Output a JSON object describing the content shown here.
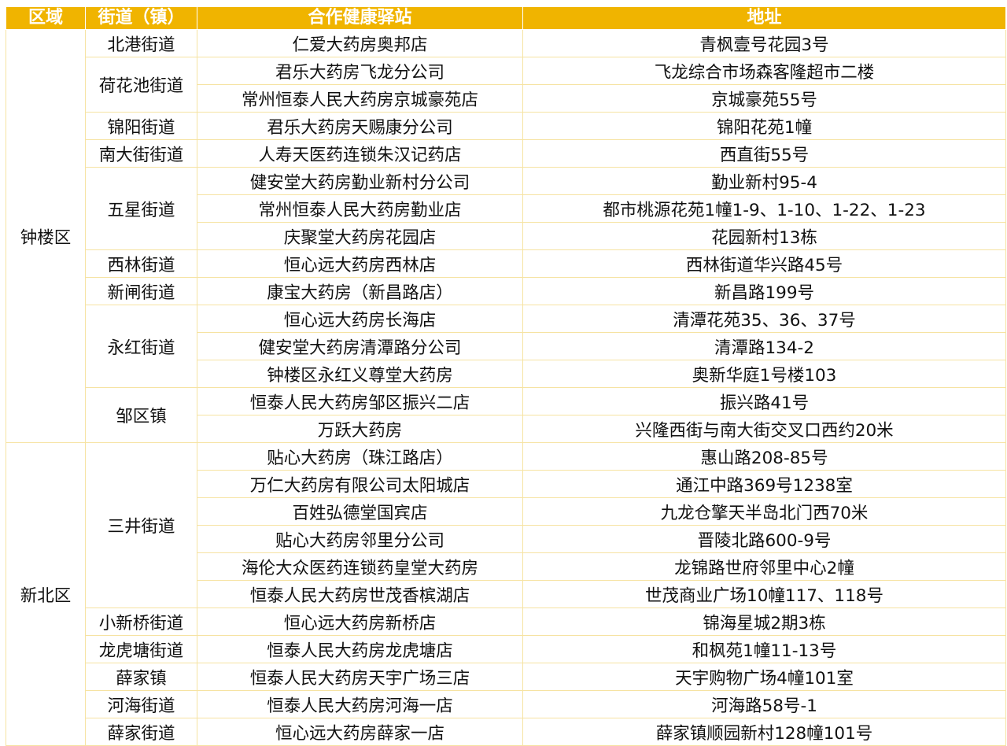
{
  "header": {
    "district": "区域",
    "street": "街道（镇）",
    "station": "合作健康驿站",
    "address": "地址"
  },
  "colors": {
    "header_bg": "#F0B400",
    "header_text": "#FFFFFF",
    "border": "#F6E3A2"
  },
  "districts": [
    {
      "name": "钟楼区",
      "streets": [
        {
          "name": "北港街道",
          "stations": [
            {
              "name": "仁爱大药房奥邦店",
              "address": "青枫壹号花园3号"
            }
          ]
        },
        {
          "name": "荷花池街道",
          "stations": [
            {
              "name": "君乐大药房飞龙分公司",
              "address": "飞龙综合市场森客隆超市二楼"
            },
            {
              "name": "常州恒泰人民大药房京城豪苑店",
              "address": "京城豪苑55号"
            }
          ]
        },
        {
          "name": "锦阳街道",
          "stations": [
            {
              "name": "君乐大药房天赐康分公司",
              "address": "锦阳花苑1幢"
            }
          ]
        },
        {
          "name": "南大街街道",
          "stations": [
            {
              "name": "人寿天医药连锁朱汉记药店",
              "address": "西直街55号"
            }
          ]
        },
        {
          "name": "五星街道",
          "stations": [
            {
              "name": "健安堂大药房勤业新村分公司",
              "address": "勤业新村95-4"
            },
            {
              "name": "常州恒泰人民大药房勤业店",
              "address": "都市桃源花苑1幢1-9、1-10、1-22、1-23"
            },
            {
              "name": "庆聚堂大药房花园店",
              "address": "花园新村13栋"
            }
          ]
        },
        {
          "name": "西林街道",
          "stations": [
            {
              "name": "恒心远大药房西林店",
              "address": "西林街道华兴路45号"
            }
          ]
        },
        {
          "name": "新闸街道",
          "stations": [
            {
              "name": "康宝大药房（新昌路店）",
              "address": "新昌路199号"
            }
          ]
        },
        {
          "name": "永红街道",
          "stations": [
            {
              "name": "恒心远大药房长海店",
              "address": "清潭花苑35、36、37号"
            },
            {
              "name": "健安堂大药房清潭路分公司",
              "address": "清潭路134-2"
            },
            {
              "name": "钟楼区永红义尊堂大药房",
              "address": "奥新华庭1号楼103"
            }
          ]
        },
        {
          "name": "邹区镇",
          "stations": [
            {
              "name": "恒泰人民大药房邹区振兴二店",
              "address": "振兴路41号"
            },
            {
              "name": "万跃大药房",
              "address": "兴隆西街与南大街交叉口西约20米"
            }
          ]
        }
      ]
    },
    {
      "name": "新北区",
      "streets": [
        {
          "name": "三井街道",
          "stations": [
            {
              "name": "贴心大药房（珠江路店）",
              "address": "惠山路208-85号"
            },
            {
              "name": "万仁大药房有限公司太阳城店",
              "address": "通江中路369号1238室"
            },
            {
              "name": "百姓弘德堂国宾店",
              "address": "九龙仓擎天半岛北门西70米"
            },
            {
              "name": "贴心大药房邻里分公司",
              "address": "晋陵北路600-9号"
            },
            {
              "name": "海伦大众医药连锁药皇堂大药房",
              "address": "龙锦路世府邻里中心2幢"
            },
            {
              "name": "恒泰人民大药房世茂香槟湖店",
              "address": "世茂商业广场10幢117、118号"
            }
          ]
        },
        {
          "name": "小新桥街道",
          "stations": [
            {
              "name": "恒心远大药房新桥店",
              "address": "锦海星城2期3栋"
            }
          ]
        },
        {
          "name": "龙虎塘街道",
          "stations": [
            {
              "name": "恒泰人民大药房龙虎塘店",
              "address": "和枫苑1幢11-13号"
            }
          ]
        },
        {
          "name": "薛家镇",
          "stations": [
            {
              "name": "恒泰人民大药房天宇广场三店",
              "address": "天宇购物广场4幢101室"
            }
          ]
        },
        {
          "name": "河海街道",
          "stations": [
            {
              "name": "恒泰人民大药房河海一店",
              "address": "河海路58号-1"
            }
          ]
        },
        {
          "name": "薛家街道",
          "stations": [
            {
              "name": "恒心远大药房薛家一店",
              "address": "薛家镇顺园新村128幢101号"
            }
          ]
        }
      ]
    }
  ]
}
